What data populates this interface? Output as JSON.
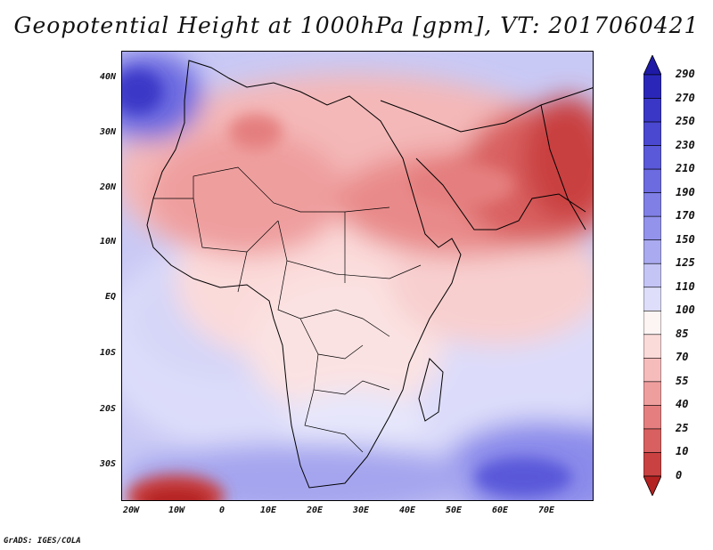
{
  "title": "Geopotential Height at 1000hPa [gpm], VT: 2017060421",
  "map": {
    "lat_labels": [
      "40N",
      "30N",
      "20N",
      "10N",
      "EQ",
      "10S",
      "20S",
      "30S"
    ],
    "lon_labels": [
      "20W",
      "10W",
      "0",
      "10E",
      "20E",
      "30E",
      "40E",
      "50E",
      "60E",
      "70E"
    ],
    "lat_range": [
      -36.5,
      45
    ],
    "lon_range": [
      -22,
      80
    ]
  },
  "colorbar": {
    "labels": [
      "290",
      "270",
      "250",
      "230",
      "210",
      "190",
      "170",
      "150",
      "125",
      "110",
      "100",
      "85",
      "70",
      "55",
      "40",
      "25",
      "10",
      "0"
    ],
    "colors": [
      "#1e1aa6",
      "#2a27b8",
      "#3a37c7",
      "#4a48d0",
      "#5a59d9",
      "#6c6be0",
      "#7f7fe6",
      "#9393ec",
      "#aaaaf0",
      "#c4c4f5",
      "#dedefa",
      "#fdf4f4",
      "#fbdada",
      "#f6bcbc",
      "#ef9e9e",
      "#e57f7f",
      "#d96060",
      "#c94141",
      "#b52222"
    ]
  },
  "credit": "GrADS: IGES/COLA"
}
